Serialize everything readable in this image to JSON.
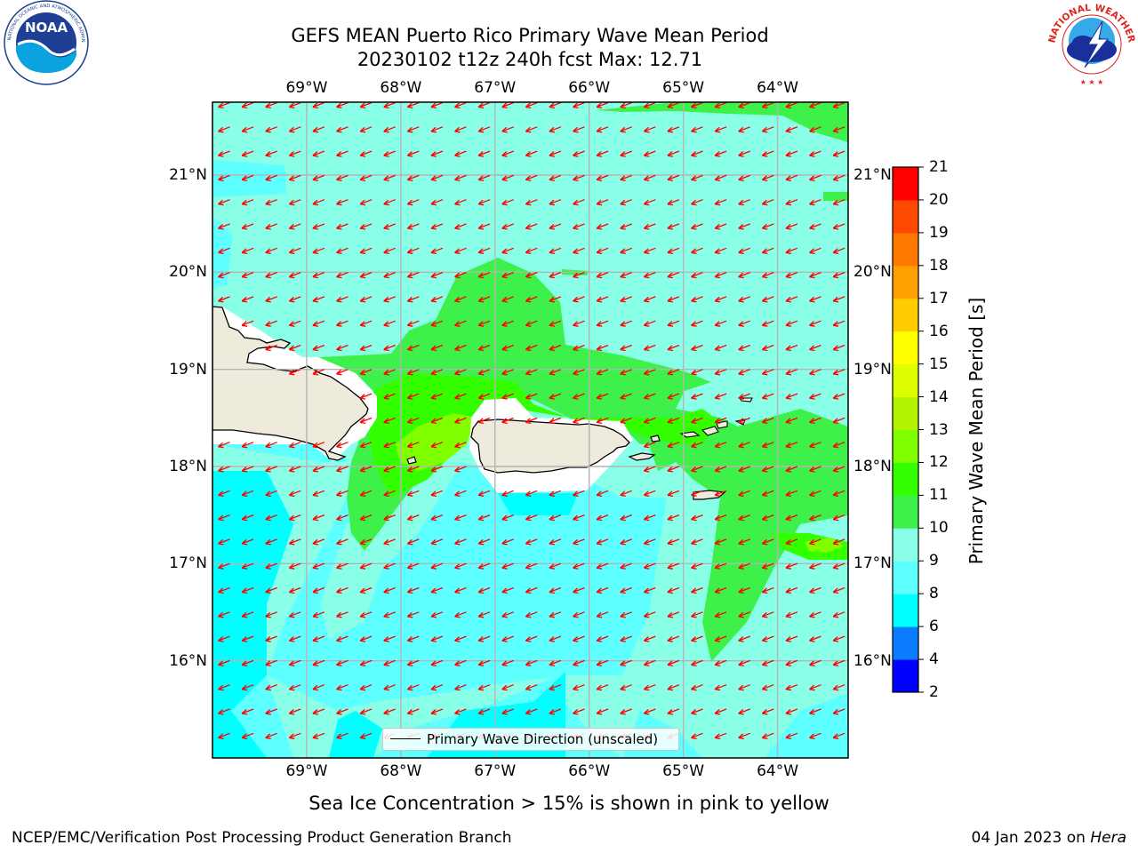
{
  "title": {
    "line1": "GEFS MEAN Puerto Rico Primary Wave Mean Period",
    "line2": "20230102 t12z 240h fcst   Max: 12.71"
  },
  "map": {
    "lon_range": [
      -70.0,
      -63.25
    ],
    "lat_range": [
      15.0,
      21.75
    ],
    "lon_ticks": [
      {
        "value": -69,
        "label": "69°W"
      },
      {
        "value": -68,
        "label": "68°W"
      },
      {
        "value": -67,
        "label": "67°W"
      },
      {
        "value": -66,
        "label": "66°W"
      },
      {
        "value": -65,
        "label": "65°W"
      },
      {
        "value": -64,
        "label": "64°W"
      }
    ],
    "lat_ticks": [
      {
        "value": 21,
        "label": "21°N"
      },
      {
        "value": 20,
        "label": "20°N"
      },
      {
        "value": 19,
        "label": "19°N"
      },
      {
        "value": 18,
        "label": "18°N"
      },
      {
        "value": 17,
        "label": "17°N"
      },
      {
        "value": 16,
        "label": "16°N"
      }
    ],
    "grid": true,
    "land_color": "#efebdc",
    "ocean_base_color": "#8affe8",
    "arrow_color": "#ff0000",
    "arrow_direction": "toward southwest"
  },
  "legend": {
    "label": "Primary Wave Direction (unscaled)",
    "placement": "bottom-center"
  },
  "colorbar": {
    "label": "Primary Wave Mean Period [s]",
    "ticks": [
      "2",
      "4",
      "6",
      "8",
      "9",
      "10",
      "11",
      "12",
      "13",
      "14",
      "15",
      "16",
      "17",
      "18",
      "19",
      "20",
      "21"
    ],
    "bands": [
      {
        "from": 2,
        "to": 4,
        "color": "#0000ff"
      },
      {
        "from": 4,
        "to": 6,
        "color": "#0a7cff"
      },
      {
        "from": 6,
        "to": 8,
        "color": "#00ffff"
      },
      {
        "from": 8,
        "to": 9,
        "color": "#5effff"
      },
      {
        "from": 9,
        "to": 10,
        "color": "#8affe8"
      },
      {
        "from": 10,
        "to": 11,
        "color": "#3df04a"
      },
      {
        "from": 11,
        "to": 12,
        "color": "#33ff00"
      },
      {
        "from": 12,
        "to": 13,
        "color": "#80ff00"
      },
      {
        "from": 13,
        "to": 14,
        "color": "#b3f500"
      },
      {
        "from": 14,
        "to": 15,
        "color": "#ddff00"
      },
      {
        "from": 15,
        "to": 16,
        "color": "#ffff00"
      },
      {
        "from": 16,
        "to": 17,
        "color": "#ffcc00"
      },
      {
        "from": 17,
        "to": 18,
        "color": "#ffa000"
      },
      {
        "from": 18,
        "to": 19,
        "color": "#ff7800"
      },
      {
        "from": 19,
        "to": 20,
        "color": "#ff4800"
      },
      {
        "from": 20,
        "to": 21,
        "color": "#ff0000"
      }
    ]
  },
  "note": "Sea Ice Concentration > 15% is shown in pink to yellow",
  "footer": {
    "left": "NCEP/EMC/Verification Post Processing Product Generation Branch",
    "right_date": "04 Jan 2023 on ",
    "right_host": "Hera"
  },
  "logos": {
    "noaa": {
      "text": "NOAA",
      "ring_text": "NATIONAL OCEANIC AND ATMOSPHERIC ADMINISTRATION · U.S. DEPARTMENT OF COMMERCE"
    },
    "nws": {
      "ring_text": "NATIONAL WEATHER SERVICE"
    }
  }
}
